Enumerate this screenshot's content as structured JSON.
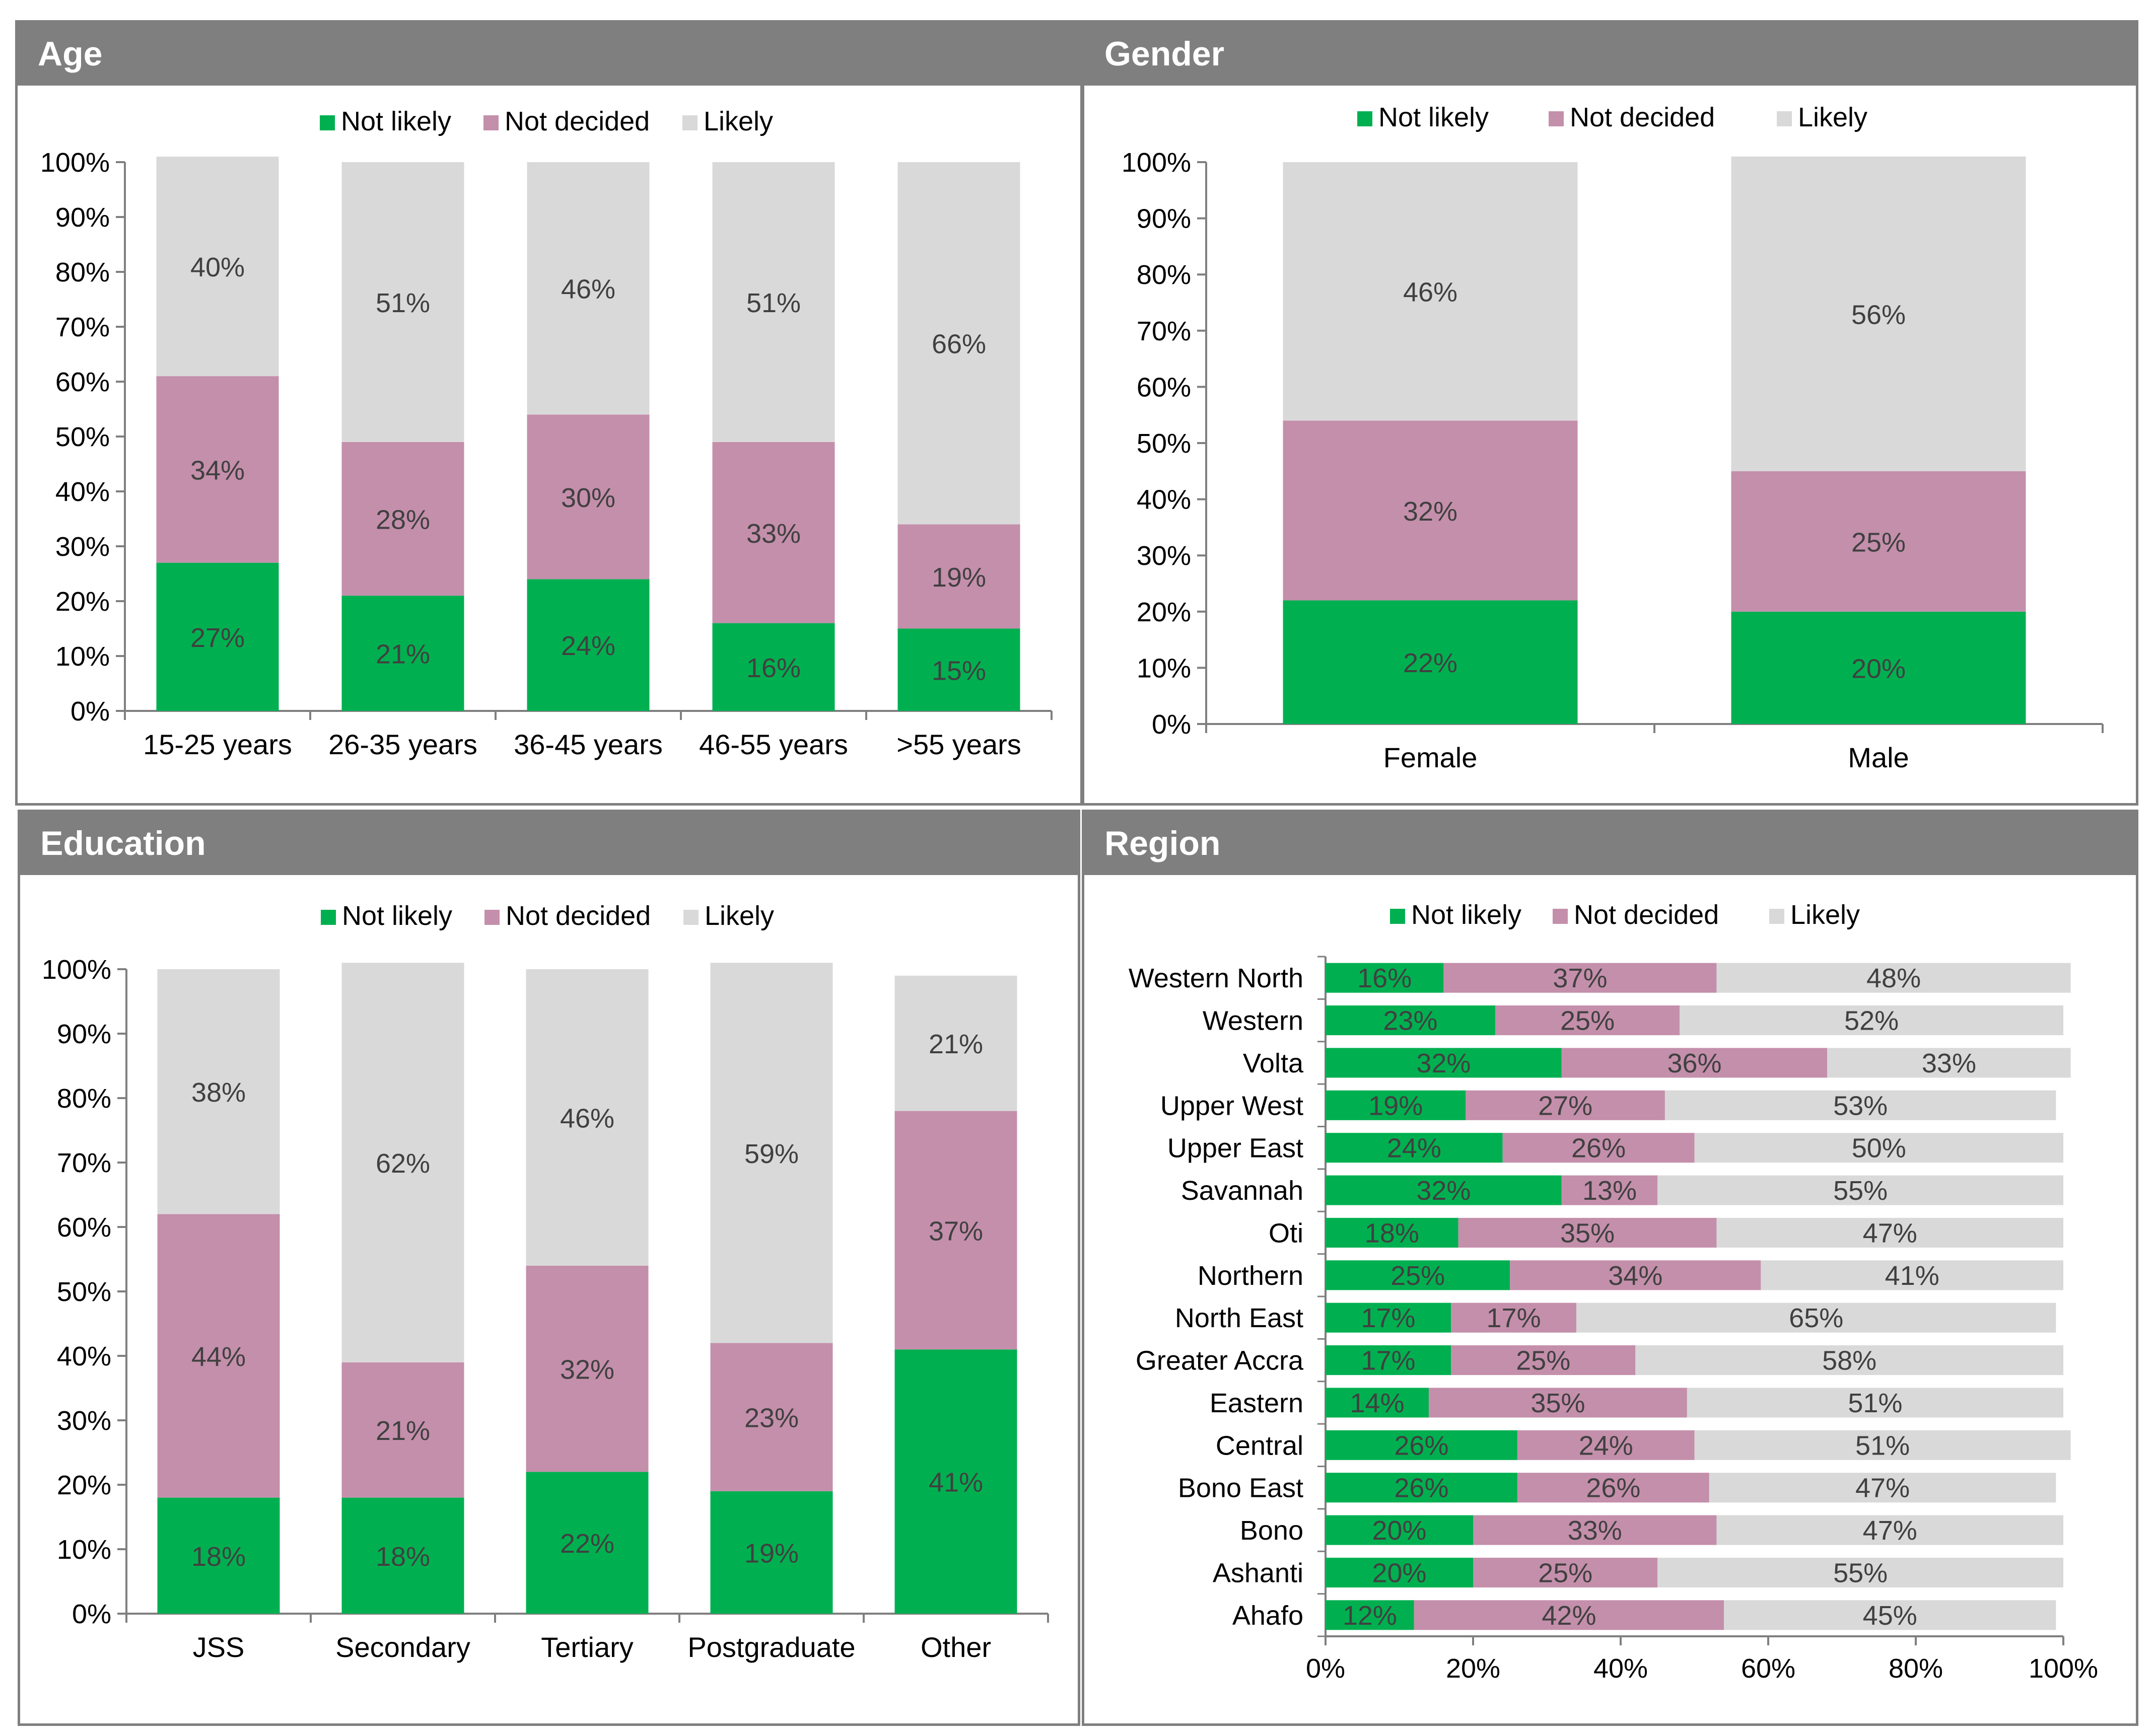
{
  "colors": {
    "not_likely": "#00b050",
    "not_decided": "#c48fab",
    "likely": "#d9d9d9",
    "header": "#7f7f7f"
  },
  "panels": {
    "age": {
      "title": "Age"
    },
    "gender": {
      "title": "Gender"
    },
    "education": {
      "title": "Education"
    },
    "region": {
      "title": "Region"
    }
  },
  "chart_data": [
    {
      "id": "age",
      "type": "bar",
      "stacked": true,
      "orientation": "vertical",
      "title": "Age",
      "categories": [
        "15-25 years",
        "26-35  years",
        "36-45  years",
        "46-55 years",
        ">55 years"
      ],
      "series": [
        {
          "name": "Not likely",
          "values": [
            27,
            21,
            24,
            16,
            15
          ]
        },
        {
          "name": "Not decided",
          "values": [
            34,
            28,
            30,
            33,
            19
          ]
        },
        {
          "name": "Likely",
          "values": [
            40,
            51,
            46,
            51,
            66
          ]
        }
      ],
      "display_labels": {
        "Not likely": [
          "27%",
          "21%",
          "24%",
          "16%",
          "15%"
        ],
        "Not decided": [
          "34%",
          "28%",
          "30%",
          "33%",
          "19%"
        ],
        "Likely": [
          "40%",
          "51%",
          "46%",
          "51%",
          "66%"
        ]
      },
      "ylim": [
        0,
        100
      ],
      "ticks": [
        "0%",
        "10%",
        "20%",
        "30%",
        "40%",
        "50%",
        "60%",
        "70%",
        "80%",
        "90%",
        "100%"
      ],
      "legend": "top"
    },
    {
      "id": "gender",
      "type": "bar",
      "stacked": true,
      "orientation": "vertical",
      "title": "Gender",
      "categories": [
        "Female",
        "Male"
      ],
      "series": [
        {
          "name": "Not likely",
          "values": [
            22,
            20
          ]
        },
        {
          "name": "Not decided",
          "values": [
            32,
            25
          ]
        },
        {
          "name": "Likely",
          "values": [
            46,
            56
          ]
        }
      ],
      "display_labels": {
        "Not likely": [
          "22%",
          "20%"
        ],
        "Not decided": [
          "32%",
          "25%"
        ],
        "Likely": [
          "46%",
          "56%"
        ]
      },
      "ylim": [
        0,
        100
      ],
      "ticks": [
        "0%",
        "10%",
        "20%",
        "30%",
        "40%",
        "50%",
        "60%",
        "70%",
        "80%",
        "90%",
        "100%"
      ],
      "legend": "top"
    },
    {
      "id": "education",
      "type": "bar",
      "stacked": true,
      "orientation": "vertical",
      "title": "Education",
      "categories": [
        "JSS",
        "Secondary",
        "Tertiary",
        "Postgraduate",
        "Other"
      ],
      "series": [
        {
          "name": "Not likely",
          "values": [
            18,
            18,
            22,
            19,
            41
          ]
        },
        {
          "name": "Not decided",
          "values": [
            44,
            21,
            32,
            23,
            37
          ]
        },
        {
          "name": "Likely",
          "values": [
            38,
            62,
            46,
            59,
            21
          ]
        }
      ],
      "display_labels": {
        "Not likely": [
          "18%",
          "18%",
          "22%",
          "19%",
          "41%"
        ],
        "Not decided": [
          "44%",
          "21%",
          "32%",
          "23%",
          "37%"
        ],
        "Likely": [
          "38%",
          "62%",
          "46%",
          "59%",
          "21%"
        ]
      },
      "ylim": [
        0,
        100
      ],
      "ticks": [
        "0%",
        "10%",
        "20%",
        "30%",
        "40%",
        "50%",
        "60%",
        "70%",
        "80%",
        "90%",
        "100%"
      ],
      "legend": "top"
    },
    {
      "id": "region",
      "type": "bar",
      "stacked": true,
      "orientation": "horizontal",
      "title": "Region",
      "categories": [
        "Western North",
        "Western",
        "Volta",
        "Upper West",
        "Upper East",
        "Savannah",
        "Oti",
        "Northern",
        "North East",
        "Greater Accra",
        "Eastern",
        "Central",
        "Bono East",
        "Bono",
        "Ashanti",
        "Ahafo"
      ],
      "series": [
        {
          "name": "Not likely",
          "values": [
            16,
            23,
            32,
            19,
            24,
            32,
            18,
            25,
            17,
            17,
            14,
            26,
            26,
            20,
            20,
            12
          ]
        },
        {
          "name": "Not decided",
          "values": [
            37,
            25,
            36,
            27,
            26,
            13,
            35,
            34,
            17,
            25,
            35,
            24,
            26,
            33,
            25,
            42
          ]
        },
        {
          "name": "Likely",
          "values": [
            48,
            52,
            33,
            53,
            50,
            55,
            47,
            41,
            65,
            58,
            51,
            51,
            47,
            47,
            55,
            45
          ]
        }
      ],
      "display_labels": {
        "Not likely": [
          "16%",
          "23%",
          "32%",
          "19%",
          "24%",
          "32%",
          "18%",
          "25%",
          "17%",
          "17%",
          "14%",
          "26%",
          "26%",
          "20%",
          "20%",
          "12%"
        ],
        "Not decided": [
          "37%",
          "25%",
          "36%",
          "27%",
          "26%",
          "13%",
          "35%",
          "34%",
          "17%",
          "25%",
          "35%",
          "24%",
          "26%",
          "33%",
          "25%",
          "42%"
        ],
        "Likely": [
          "48%",
          "52%",
          "33%",
          "53%",
          "50%",
          "55%",
          "47%",
          "41%",
          "65%",
          "58%",
          "51%",
          "51%",
          "47%",
          "47%",
          "55%",
          "45%"
        ]
      },
      "xlim": [
        0,
        100
      ],
      "ticks": [
        "0%",
        "20%",
        "40%",
        "60%",
        "80%",
        "100%"
      ],
      "legend": "top"
    }
  ]
}
